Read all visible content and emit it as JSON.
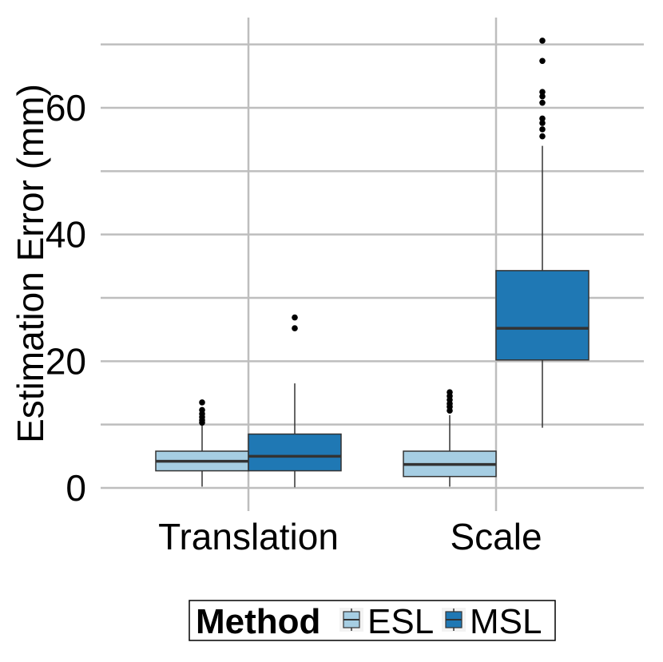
{
  "chart_data": {
    "type": "boxplot",
    "title": "",
    "xlabel": "",
    "ylabel": "Estimation Error (mm)",
    "ylim": [
      -4,
      74
    ],
    "y_ticks": [
      0,
      20,
      40,
      60
    ],
    "y_tick_labels": [
      "0",
      "20",
      "40",
      "60"
    ],
    "categories": [
      "Translation",
      "Scale"
    ],
    "grid": true,
    "legend": {
      "title": "Method",
      "position": "bottom",
      "entries": [
        "ESL",
        "MSL"
      ]
    },
    "series": [
      {
        "name": "ESL",
        "color": "#a6cee3",
        "boxes": [
          {
            "category": "Translation",
            "min": 0.2,
            "q1": 2.7,
            "median": 4.2,
            "q3": 5.8,
            "max": 10.0,
            "outliers": [
              10.3,
              10.7,
              11.2,
              11.7,
              12.3,
              13.5
            ]
          },
          {
            "category": "Scale",
            "min": 0.2,
            "q1": 1.8,
            "median": 3.7,
            "q3": 5.8,
            "max": 11.5,
            "outliers": [
              12.2,
              12.8,
              13.3,
              13.9,
              14.5,
              15.1
            ]
          }
        ]
      },
      {
        "name": "MSL",
        "color": "#1f78b4",
        "boxes": [
          {
            "category": "Translation",
            "min": 0.1,
            "q1": 2.7,
            "median": 5.0,
            "q3": 8.5,
            "max": 16.5,
            "outliers": [
              25.2,
              26.9
            ]
          },
          {
            "category": "Scale",
            "min": 9.5,
            "q1": 20.2,
            "median": 25.2,
            "q3": 34.3,
            "max": 54.0,
            "outliers": [
              55.5,
              56.6,
              57.6,
              58.3,
              60.8,
              61.8,
              62.5,
              67.4,
              70.6
            ]
          }
        ]
      }
    ]
  }
}
